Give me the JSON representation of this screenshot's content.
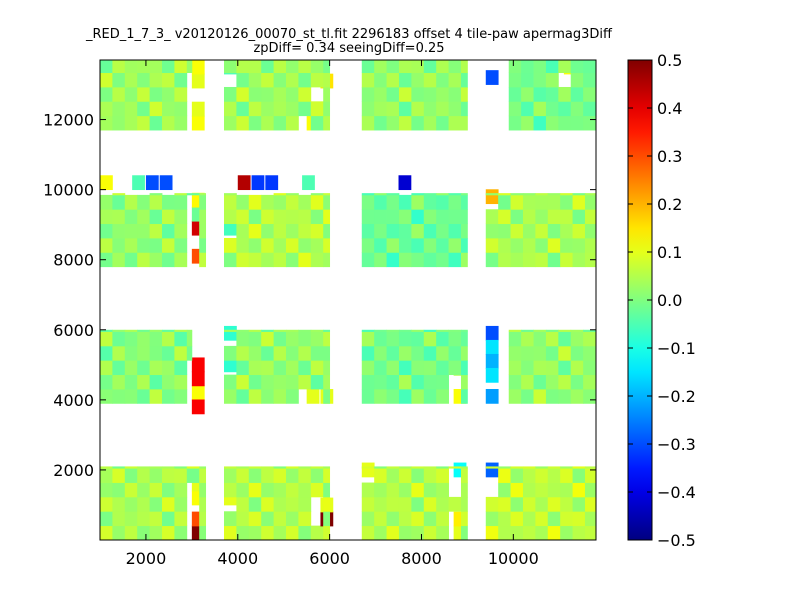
{
  "chart_data": {
    "type": "heatmap",
    "title": "_RED_1_7_3_ v20120126_00070_st_tl.fit 2296183 offset 4 tile-paw apermag3Diff",
    "subtitle": "zpDiff= 0.34 seeingDiff=0.25",
    "xlim": [
      1000,
      11800
    ],
    "ylim": [
      0,
      13700
    ],
    "x_ticks": [
      2000,
      4000,
      6000,
      8000,
      10000
    ],
    "y_ticks": [
      2000,
      4000,
      6000,
      8000,
      10000,
      12000
    ],
    "colorbar": {
      "range": [
        -0.5,
        0.5
      ],
      "ticks": [
        -0.5,
        -0.4,
        -0.3,
        -0.2,
        -0.1,
        0.0,
        0.1,
        0.2,
        0.3,
        0.4,
        0.5
      ],
      "tick_labels": [
        "−0.5",
        "−0.4",
        "−0.3",
        "−0.2",
        "−0.1",
        "0.0",
        "0.1",
        "0.2",
        "0.3",
        "0.4",
        "0.5"
      ],
      "colormap": "jet"
    },
    "cell_size": [
      270,
      410
    ],
    "regions": [
      {
        "x0": 1000,
        "x1": 3300,
        "y0": 0,
        "y1": 2100,
        "base": 0.04
      },
      {
        "x0": 3700,
        "x1": 6000,
        "y0": 0,
        "y1": 2100,
        "base": 0.05
      },
      {
        "x0": 6700,
        "x1": 9000,
        "y0": 0,
        "y1": 2100,
        "base": 0.05
      },
      {
        "x0": 9400,
        "x1": 11800,
        "y0": 0,
        "y1": 2100,
        "base": 0.06
      },
      {
        "x0": 1000,
        "x1": 3000,
        "y0": 3900,
        "y1": 6000,
        "base": 0.01
      },
      {
        "x0": 3700,
        "x1": 6000,
        "y0": 3900,
        "y1": 6000,
        "base": 0.02
      },
      {
        "x0": 6700,
        "x1": 9000,
        "y0": 3900,
        "y1": 6000,
        "base": -0.01
      },
      {
        "x0": 9900,
        "x1": 11800,
        "y0": 3900,
        "y1": 6000,
        "base": 0.02
      },
      {
        "x0": 1000,
        "x1": 3300,
        "y0": 7800,
        "y1": 9900,
        "base": 0.02
      },
      {
        "x0": 3700,
        "x1": 6000,
        "y0": 7800,
        "y1": 9900,
        "base": 0.05
      },
      {
        "x0": 6700,
        "x1": 9000,
        "y0": 7800,
        "y1": 9900,
        "base": -0.02
      },
      {
        "x0": 9400,
        "x1": 11800,
        "y0": 7800,
        "y1": 9900,
        "base": 0.04
      },
      {
        "x0": 1000,
        "x1": 3000,
        "y0": 11700,
        "y1": 13700,
        "base": 0.03
      },
      {
        "x0": 3700,
        "x1": 6000,
        "y0": 11700,
        "y1": 13700,
        "base": 0.03
      },
      {
        "x0": 6700,
        "x1": 9000,
        "y0": 11700,
        "y1": 13700,
        "base": 0.02
      },
      {
        "x0": 9900,
        "x1": 11800,
        "y0": 11700,
        "y1": 13700,
        "base": -0.01
      }
    ],
    "special_cells": [
      {
        "x": 3000,
        "y": 13300,
        "v": 0.12
      },
      {
        "x": 3000,
        "y": 12900,
        "v": 0.1
      },
      {
        "x": 3000,
        "y": 12500,
        "v": 0.1
      },
      {
        "x": 3000,
        "y": 12100,
        "v": 0.1
      },
      {
        "x": 3000,
        "y": 11700,
        "v": 0.12
      },
      {
        "x": 5800,
        "y": 12900,
        "v": 0.15
      },
      {
        "x": 5500,
        "y": 11700,
        "v": 0.12
      },
      {
        "x": 3700,
        "y": 13300,
        "v": -0.05
      },
      {
        "x": 9400,
        "y": 13000,
        "v": -0.3
      },
      {
        "x": 11100,
        "y": 13300,
        "v": 0.12
      },
      {
        "x": 1000,
        "y": 10000,
        "v": 0.12
      },
      {
        "x": 1700,
        "y": 10000,
        "v": -0.05
      },
      {
        "x": 2000,
        "y": 10000,
        "v": -0.3
      },
      {
        "x": 2300,
        "y": 10000,
        "v": -0.3
      },
      {
        "x": 4000,
        "y": 10000,
        "v": 0.45
      },
      {
        "x": 4300,
        "y": 10000,
        "v": -0.32
      },
      {
        "x": 4600,
        "y": 10000,
        "v": -0.32
      },
      {
        "x": 5400,
        "y": 10000,
        "v": -0.05
      },
      {
        "x": 7500,
        "y": 10000,
        "v": -0.42
      },
      {
        "x": 9400,
        "y": 9600,
        "v": 0.2
      },
      {
        "x": 3000,
        "y": 9500,
        "v": 0.13
      },
      {
        "x": 3000,
        "y": 9100,
        "v": -0.02
      },
      {
        "x": 3000,
        "y": 8700,
        "v": 0.42
      },
      {
        "x": 3000,
        "y": 7900,
        "v": 0.3
      },
      {
        "x": 3000,
        "y": 8300,
        "v": null
      },
      {
        "x": 3700,
        "y": 8700,
        "v": -0.06
      },
      {
        "x": 3000,
        "y": 4800,
        "v": 0.38
      },
      {
        "x": 3000,
        "y": 4400,
        "v": 0.38
      },
      {
        "x": 3000,
        "y": 4000,
        "v": 0.12
      },
      {
        "x": 3000,
        "y": 3600,
        "v": 0.38
      },
      {
        "x": 3700,
        "y": 5700,
        "v": -0.08
      },
      {
        "x": 3700,
        "y": 4800,
        "v": -0.08
      },
      {
        "x": 5800,
        "y": 3900,
        "v": 0.1
      },
      {
        "x": 5500,
        "y": 3900,
        "v": 0.1
      },
      {
        "x": 8700,
        "y": 4700,
        "v": 0.05
      },
      {
        "x": 8700,
        "y": 3900,
        "v": 0.12
      },
      {
        "x": 9400,
        "y": 5700,
        "v": -0.3
      },
      {
        "x": 9400,
        "y": 5300,
        "v": -0.15
      },
      {
        "x": 9400,
        "y": 4900,
        "v": -0.2
      },
      {
        "x": 9400,
        "y": 4500,
        "v": -0.15
      },
      {
        "x": 9400,
        "y": 4100,
        "v": -0.22
      },
      {
        "x": 9400,
        "y": 3900,
        "v": -0.22
      },
      {
        "x": 8700,
        "y": 1800,
        "v": -0.12
      },
      {
        "x": 9400,
        "y": 1800,
        "v": -0.28
      },
      {
        "x": 6700,
        "y": 1800,
        "v": 0.1
      },
      {
        "x": 8700,
        "y": 1400,
        "v": null
      },
      {
        "x": 9400,
        "y": 1400,
        "v": null
      },
      {
        "x": 3000,
        "y": 1400,
        "v": 0.1
      },
      {
        "x": 3000,
        "y": 1000,
        "v": 0.12
      },
      {
        "x": 3000,
        "y": 600,
        "v": 0.12
      },
      {
        "x": 3000,
        "y": 400,
        "v": 0.3
      },
      {
        "x": 3000,
        "y": 0,
        "v": 0.5
      },
      {
        "x": 5800,
        "y": 400,
        "v": 0.52
      },
      {
        "x": 8700,
        "y": 400,
        "v": 0.14
      },
      {
        "x": 8700,
        "y": 0,
        "v": 0.1
      },
      {
        "x": 3700,
        "y": 1000,
        "v": 0.1
      },
      {
        "x": 5800,
        "y": 800,
        "v": 0.1
      }
    ]
  }
}
